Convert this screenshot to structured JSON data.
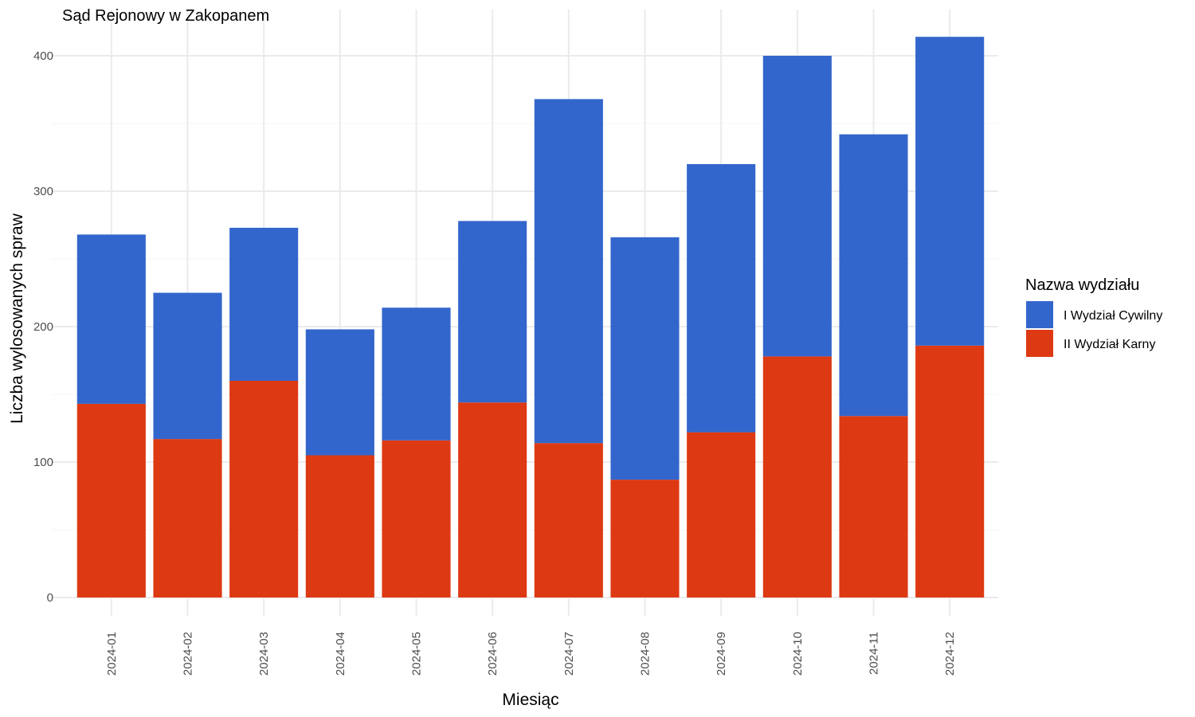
{
  "chart_data": {
    "type": "bar",
    "stacked": true,
    "title": "Sąd Rejonowy w Zakopanem",
    "xlabel": "Miesiąc",
    "ylabel": "Liczba wylosowanych spraw",
    "categories": [
      "2024-01",
      "2024-02",
      "2024-03",
      "2024-04",
      "2024-05",
      "2024-06",
      "2024-07",
      "2024-08",
      "2024-09",
      "2024-10",
      "2024-11",
      "2024-12"
    ],
    "series": [
      {
        "name": "II Wydział Karny",
        "color": "#dd3913",
        "values": [
          143,
          117,
          160,
          105,
          116,
          144,
          114,
          87,
          122,
          178,
          134,
          186
        ]
      },
      {
        "name": "I Wydział Cywilny",
        "color": "#3366cc",
        "values": [
          125,
          108,
          113,
          93,
          98,
          134,
          254,
          179,
          198,
          222,
          208,
          228
        ]
      }
    ],
    "ylim": [
      0,
      414
    ],
    "yticks": [
      0,
      100,
      200,
      300,
      400
    ],
    "grid": true,
    "legend": {
      "title": "Nazwa wydziału",
      "position": "right",
      "order": [
        "I Wydział Cywilny",
        "II Wydział Karny"
      ]
    }
  }
}
